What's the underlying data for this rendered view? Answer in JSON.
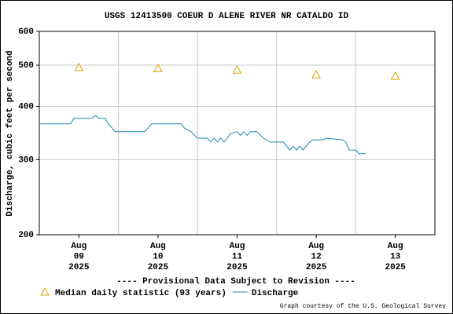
{
  "chart_data": {
    "type": "line",
    "title": "USGS 12413500 COEUR D ALENE RIVER NR CATALDO ID",
    "y_label": "Discharge, cubic feet per second",
    "note": "---- Provisional Data Subject to Revision ----",
    "note_color": "#e00000",
    "credit": "Graph courtesy of the U.S. Geological Survey",
    "log_y": true,
    "grid": true,
    "ylim": [
      200,
      600
    ],
    "yticks": [
      200,
      300,
      400,
      500,
      600
    ],
    "xlim": [
      "2025-08-09T00:00",
      "2025-08-14T00:00"
    ],
    "xgrid": [
      "2025-08-10T00:00",
      "2025-08-11T00:00",
      "2025-08-12T00:00",
      "2025-08-13T00:00"
    ],
    "xticks": [
      {
        "value": "2025-08-09T12:00",
        "label": [
          "Aug",
          "09",
          "2025"
        ]
      },
      {
        "value": "2025-08-10T12:00",
        "label": [
          "Aug",
          "10",
          "2025"
        ]
      },
      {
        "value": "2025-08-11T12:00",
        "label": [
          "Aug",
          "11",
          "2025"
        ]
      },
      {
        "value": "2025-08-12T12:00",
        "label": [
          "Aug",
          "12",
          "2025"
        ]
      },
      {
        "value": "2025-08-13T12:00",
        "label": [
          "Aug",
          "13",
          "2025"
        ]
      }
    ],
    "series": [
      {
        "name": "Median daily statistic (93 years)",
        "type": "scatter",
        "color": "#e0a000",
        "x": [
          "2025-08-09T12:00",
          "2025-08-10T12:00",
          "2025-08-11T12:00",
          "2025-08-12T12:00",
          "2025-08-13T12:00"
        ],
        "values": [
          494,
          491,
          487,
          475,
          471
        ]
      },
      {
        "name": "Discharge",
        "type": "line",
        "color": "#1a8ab8",
        "x": [
          "2025-08-09T00:00",
          "2025-08-09T09:30",
          "2025-08-09T10:30",
          "2025-08-09T16:00",
          "2025-08-09T17:00",
          "2025-08-09T18:00",
          "2025-08-09T20:00",
          "2025-08-09T21:00",
          "2025-08-09T23:00",
          "2025-08-10T08:00",
          "2025-08-10T09:00",
          "2025-08-10T10:00",
          "2025-08-10T19:00",
          "2025-08-10T20:00",
          "2025-08-10T22:00",
          "2025-08-11T00:00",
          "2025-08-11T03:00",
          "2025-08-11T04:00",
          "2025-08-11T05:00",
          "2025-08-11T06:00",
          "2025-08-11T07:00",
          "2025-08-11T08:00",
          "2025-08-11T09:00",
          "2025-08-11T10:00",
          "2025-08-11T12:00",
          "2025-08-11T13:00",
          "2025-08-11T14:00",
          "2025-08-11T15:00",
          "2025-08-11T16:00",
          "2025-08-11T18:00",
          "2025-08-11T20:00",
          "2025-08-11T22:00",
          "2025-08-12T02:00",
          "2025-08-12T03:00",
          "2025-08-12T04:00",
          "2025-08-12T05:00",
          "2025-08-12T06:00",
          "2025-08-12T07:00",
          "2025-08-12T08:00",
          "2025-08-12T09:00",
          "2025-08-12T10:00",
          "2025-08-12T11:00",
          "2025-08-12T14:00",
          "2025-08-12T15:00",
          "2025-08-12T20:00",
          "2025-08-12T21:00",
          "2025-08-12T22:00",
          "2025-08-13T00:00",
          "2025-08-13T01:00",
          "2025-08-13T03:00"
        ],
        "values": [
          364,
          364,
          375,
          375,
          381,
          375,
          375,
          364,
          349,
          349,
          356,
          364,
          364,
          356,
          349,
          337,
          337,
          330,
          337,
          330,
          337,
          330,
          337,
          346,
          349,
          342,
          349,
          342,
          349,
          349,
          337,
          330,
          330,
          323,
          316,
          323,
          316,
          323,
          316,
          323,
          330,
          334,
          334,
          337,
          334,
          330,
          316,
          316,
          310,
          310
        ]
      }
    ]
  }
}
